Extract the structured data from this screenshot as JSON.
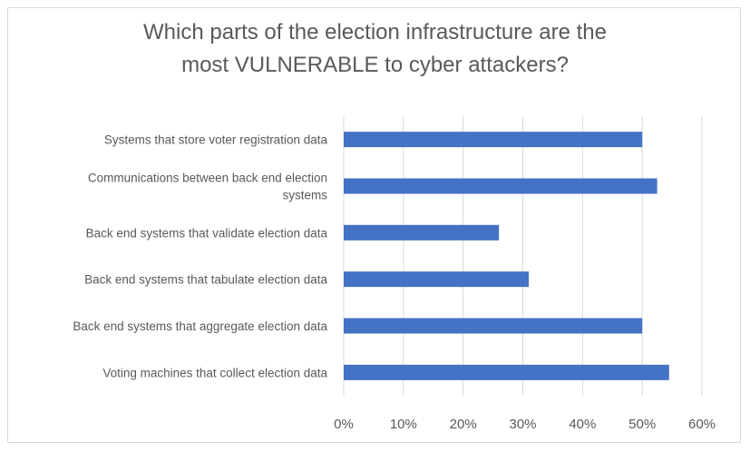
{
  "chart_data": {
    "type": "bar",
    "orientation": "horizontal",
    "title": "Which parts of the election infrastructure are the most VULNERABLE to cyber attackers?",
    "title_lines": [
      "Which parts of the election infrastructure are the",
      "most VULNERABLE to cyber attackers?"
    ],
    "categories": [
      "Systems that store voter registration data",
      "Communications between back end election systems",
      "Back end systems that validate election data",
      "Back end systems that tabulate election data",
      "Back end systems that aggregate election data",
      "Voting machines that collect election data"
    ],
    "category_label_lines": [
      [
        "Systems that store voter registration data"
      ],
      [
        "Communications between back end election",
        "systems"
      ],
      [
        "Back end systems that validate election data"
      ],
      [
        "Back end systems that tabulate election data"
      ],
      [
        "Back end systems that aggregate election data"
      ],
      [
        "Voting machines that collect election data"
      ]
    ],
    "values": [
      0.5,
      0.525,
      0.26,
      0.31,
      0.5,
      0.545
    ],
    "xlim": [
      0,
      0.6
    ],
    "xticks": [
      0,
      0.1,
      0.2,
      0.3,
      0.4,
      0.5,
      0.6
    ],
    "xtick_labels": [
      "0%",
      "10%",
      "20%",
      "30%",
      "40%",
      "50%",
      "60%"
    ],
    "xlabel": "",
    "ylabel": "",
    "grid": "vertical",
    "legend": "none",
    "colors": {
      "bar": "#4472C4",
      "grid": "#d9d9d9",
      "text": "#595959"
    }
  }
}
